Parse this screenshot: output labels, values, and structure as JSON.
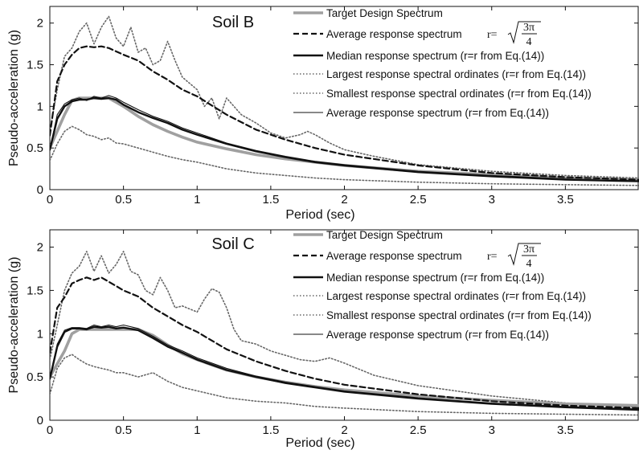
{
  "chart_data": [
    {
      "type": "line",
      "panel_label": "Soil B",
      "xlabel": "Period (sec)",
      "ylabel": "Pseudo-acceleration (g)",
      "xlim": [
        0,
        4
      ],
      "ylim": [
        0,
        2.2
      ],
      "x_ticks": [
        0,
        0.5,
        1,
        1.5,
        2,
        2.5,
        3,
        3.5
      ],
      "x_tick_labels": [
        "0",
        "0.5",
        "1",
        "1.5",
        "2",
        "2.5",
        "3",
        "3.5"
      ],
      "y_ticks": [
        0,
        0.5,
        1,
        1.5,
        2
      ],
      "y_tick_labels": [
        "0",
        "0.5",
        "1",
        "1.5",
        "2"
      ],
      "grid": false,
      "legend_position": "top-right",
      "series": [
        {
          "name": "Target Design Spectrum",
          "style": "target",
          "color": "#a0a0a0",
          "x": [
            0,
            0.1,
            0.15,
            0.2,
            0.3,
            0.4,
            0.5,
            0.6,
            0.7,
            0.8,
            0.9,
            1.0,
            1.2,
            1.4,
            1.6,
            1.8,
            2.0,
            2.5,
            3.0,
            3.5,
            4.0
          ],
          "y": [
            0.5,
            0.9,
            1.07,
            1.1,
            1.1,
            1.1,
            1.0,
            0.88,
            0.78,
            0.7,
            0.63,
            0.57,
            0.49,
            0.42,
            0.37,
            0.33,
            0.29,
            0.22,
            0.18,
            0.14,
            0.12
          ]
        },
        {
          "name": "Average response spectrum",
          "style": "dashed",
          "color": "#111111",
          "x": [
            0,
            0.05,
            0.1,
            0.15,
            0.2,
            0.25,
            0.3,
            0.35,
            0.4,
            0.45,
            0.5,
            0.6,
            0.7,
            0.8,
            0.9,
            1.0,
            1.2,
            1.4,
            1.6,
            1.8,
            2.0,
            2.5,
            3.0,
            3.5,
            4.0
          ],
          "y": [
            0.65,
            1.3,
            1.5,
            1.62,
            1.7,
            1.72,
            1.71,
            1.72,
            1.7,
            1.66,
            1.62,
            1.55,
            1.42,
            1.32,
            1.2,
            1.12,
            0.9,
            0.72,
            0.6,
            0.5,
            0.42,
            0.29,
            0.2,
            0.15,
            0.12
          ]
        },
        {
          "name": "Median response spectrum",
          "style": "thick",
          "color": "#111111",
          "x": [
            0,
            0.05,
            0.1,
            0.15,
            0.2,
            0.25,
            0.3,
            0.35,
            0.4,
            0.45,
            0.5,
            0.6,
            0.7,
            0.8,
            0.9,
            1.0,
            1.2,
            1.4,
            1.6,
            1.8,
            2.0,
            2.5,
            3.0,
            3.5,
            4.0
          ],
          "y": [
            0.48,
            0.85,
            1.0,
            1.06,
            1.08,
            1.08,
            1.1,
            1.09,
            1.1,
            1.08,
            1.02,
            0.93,
            0.86,
            0.8,
            0.72,
            0.66,
            0.55,
            0.46,
            0.39,
            0.33,
            0.29,
            0.21,
            0.16,
            0.12,
            0.1
          ]
        },
        {
          "name": "Largest response spectral ordinates",
          "style": "dotted",
          "color": "#666666",
          "x": [
            0,
            0.05,
            0.1,
            0.15,
            0.2,
            0.25,
            0.3,
            0.35,
            0.4,
            0.45,
            0.5,
            0.55,
            0.6,
            0.65,
            0.7,
            0.75,
            0.8,
            0.85,
            0.9,
            1.0,
            1.05,
            1.1,
            1.15,
            1.2,
            1.3,
            1.4,
            1.5,
            1.6,
            1.7,
            1.75,
            1.8,
            1.9,
            2.0,
            2.2,
            2.5,
            3.0,
            3.5,
            4.0
          ],
          "y": [
            0.7,
            1.2,
            1.6,
            1.7,
            1.9,
            2.0,
            1.75,
            1.95,
            2.08,
            1.82,
            1.72,
            1.95,
            1.65,
            1.7,
            1.5,
            1.55,
            1.78,
            1.55,
            1.35,
            1.2,
            1.0,
            1.1,
            0.85,
            1.1,
            0.9,
            0.8,
            0.68,
            0.62,
            0.66,
            0.7,
            0.66,
            0.56,
            0.48,
            0.4,
            0.3,
            0.22,
            0.17,
            0.14
          ]
        },
        {
          "name": "Smallest response spectral ordinates",
          "style": "dotted",
          "color": "#666666",
          "x": [
            0,
            0.05,
            0.1,
            0.15,
            0.2,
            0.25,
            0.3,
            0.35,
            0.4,
            0.45,
            0.5,
            0.6,
            0.7,
            0.8,
            0.9,
            1.0,
            1.2,
            1.4,
            1.6,
            1.8,
            2.0,
            2.5,
            3.0,
            3.5,
            4.0
          ],
          "y": [
            0.35,
            0.55,
            0.7,
            0.76,
            0.72,
            0.66,
            0.64,
            0.6,
            0.62,
            0.56,
            0.55,
            0.5,
            0.45,
            0.4,
            0.36,
            0.33,
            0.25,
            0.2,
            0.17,
            0.14,
            0.12,
            0.09,
            0.07,
            0.06,
            0.05
          ]
        },
        {
          "name": "Average response spectrum",
          "style": "thin",
          "color": "#222222",
          "x": [
            0,
            0.05,
            0.1,
            0.15,
            0.2,
            0.25,
            0.3,
            0.35,
            0.4,
            0.45,
            0.5,
            0.6,
            0.7,
            0.8,
            0.9,
            1.0,
            1.2,
            1.4,
            1.6,
            1.8,
            2.0,
            2.5,
            3.0,
            3.5,
            4.0
          ],
          "y": [
            0.48,
            0.9,
            1.03,
            1.08,
            1.1,
            1.07,
            1.12,
            1.1,
            1.13,
            1.1,
            1.05,
            0.96,
            0.88,
            0.82,
            0.74,
            0.68,
            0.56,
            0.47,
            0.4,
            0.34,
            0.3,
            0.22,
            0.17,
            0.13,
            0.1
          ]
        }
      ]
    },
    {
      "type": "line",
      "panel_label": "Soil C",
      "xlabel": "Period (sec)",
      "ylabel": "Pseudo-acceleration (g)",
      "xlim": [
        0,
        4
      ],
      "ylim": [
        0,
        2.2
      ],
      "x_ticks": [
        0,
        0.5,
        1,
        1.5,
        2,
        2.5,
        3,
        3.5
      ],
      "x_tick_labels": [
        "0",
        "0.5",
        "1",
        "1.5",
        "2",
        "2.5",
        "3",
        "3.5"
      ],
      "y_ticks": [
        0,
        0.5,
        1,
        1.5,
        2
      ],
      "y_tick_labels": [
        "0",
        "0.5",
        "1",
        "1.5",
        "2"
      ],
      "grid": false,
      "legend_position": "top-right",
      "series": [
        {
          "name": "Target Design Spectrum",
          "style": "target",
          "color": "#a0a0a0",
          "x": [
            0,
            0.1,
            0.15,
            0.2,
            0.3,
            0.4,
            0.5,
            0.6,
            0.7,
            0.8,
            0.9,
            1.0,
            1.2,
            1.4,
            1.6,
            1.8,
            2.0,
            2.5,
            3.0,
            3.5,
            4.0
          ],
          "y": [
            0.5,
            0.8,
            1.0,
            1.05,
            1.05,
            1.05,
            1.05,
            1.05,
            0.98,
            0.87,
            0.77,
            0.7,
            0.58,
            0.5,
            0.44,
            0.39,
            0.35,
            0.28,
            0.23,
            0.19,
            0.17
          ]
        },
        {
          "name": "Average response spectrum",
          "style": "dashed",
          "color": "#111111",
          "x": [
            0,
            0.05,
            0.1,
            0.15,
            0.2,
            0.25,
            0.3,
            0.35,
            0.4,
            0.45,
            0.5,
            0.6,
            0.7,
            0.8,
            0.9,
            1.0,
            1.2,
            1.4,
            1.6,
            1.8,
            2.0,
            2.5,
            3.0,
            3.5,
            4.0
          ],
          "y": [
            0.78,
            1.3,
            1.42,
            1.58,
            1.62,
            1.65,
            1.62,
            1.65,
            1.6,
            1.55,
            1.5,
            1.43,
            1.3,
            1.2,
            1.1,
            1.02,
            0.82,
            0.68,
            0.57,
            0.48,
            0.41,
            0.3,
            0.22,
            0.17,
            0.14
          ]
        },
        {
          "name": "Median response spectrum",
          "style": "thick",
          "color": "#111111",
          "x": [
            0,
            0.05,
            0.1,
            0.15,
            0.2,
            0.25,
            0.3,
            0.35,
            0.4,
            0.45,
            0.5,
            0.6,
            0.7,
            0.8,
            0.9,
            1.0,
            1.2,
            1.4,
            1.6,
            1.8,
            2.0,
            2.5,
            3.0,
            3.5,
            4.0
          ],
          "y": [
            0.48,
            0.85,
            1.02,
            1.06,
            1.06,
            1.05,
            1.08,
            1.07,
            1.08,
            1.06,
            1.07,
            1.04,
            0.95,
            0.85,
            0.78,
            0.7,
            0.58,
            0.5,
            0.43,
            0.38,
            0.33,
            0.25,
            0.19,
            0.15,
            0.12
          ]
        },
        {
          "name": "Largest response spectral ordinates",
          "style": "dotted",
          "color": "#666666",
          "x": [
            0,
            0.05,
            0.1,
            0.15,
            0.2,
            0.25,
            0.3,
            0.35,
            0.4,
            0.45,
            0.5,
            0.55,
            0.6,
            0.65,
            0.7,
            0.75,
            0.8,
            0.85,
            0.9,
            1.0,
            1.05,
            1.1,
            1.15,
            1.2,
            1.25,
            1.3,
            1.4,
            1.5,
            1.6,
            1.7,
            1.8,
            1.9,
            2.0,
            2.2,
            2.5,
            3.0,
            3.5,
            4.0
          ],
          "y": [
            0.7,
            1.1,
            1.5,
            1.7,
            1.78,
            1.95,
            1.72,
            1.9,
            1.7,
            1.8,
            1.95,
            1.72,
            1.68,
            1.5,
            1.45,
            1.65,
            1.5,
            1.3,
            1.32,
            1.25,
            1.4,
            1.52,
            1.48,
            1.3,
            1.05,
            0.92,
            0.88,
            0.8,
            0.75,
            0.7,
            0.68,
            0.72,
            0.66,
            0.52,
            0.4,
            0.28,
            0.2,
            0.15
          ]
        },
        {
          "name": "Smallest response spectral ordinates",
          "style": "dotted",
          "color": "#666666",
          "x": [
            0,
            0.05,
            0.1,
            0.15,
            0.2,
            0.25,
            0.3,
            0.35,
            0.4,
            0.45,
            0.5,
            0.6,
            0.7,
            0.8,
            0.9,
            1.0,
            1.2,
            1.4,
            1.6,
            1.8,
            2.0,
            2.5,
            3.0,
            3.5,
            4.0
          ],
          "y": [
            0.3,
            0.6,
            0.72,
            0.76,
            0.7,
            0.65,
            0.62,
            0.6,
            0.58,
            0.55,
            0.55,
            0.5,
            0.55,
            0.45,
            0.38,
            0.34,
            0.26,
            0.22,
            0.2,
            0.16,
            0.14,
            0.1,
            0.08,
            0.07,
            0.06
          ]
        },
        {
          "name": "Average response spectrum",
          "style": "thin",
          "color": "#222222",
          "x": [
            0,
            0.05,
            0.1,
            0.15,
            0.2,
            0.25,
            0.3,
            0.35,
            0.4,
            0.45,
            0.5,
            0.6,
            0.7,
            0.8,
            0.9,
            1.0,
            1.2,
            1.4,
            1.6,
            1.8,
            2.0,
            2.5,
            3.0,
            3.5,
            4.0
          ],
          "y": [
            0.48,
            0.88,
            1.04,
            1.07,
            1.07,
            1.06,
            1.1,
            1.08,
            1.1,
            1.08,
            1.1,
            1.06,
            0.97,
            0.87,
            0.8,
            0.72,
            0.6,
            0.51,
            0.44,
            0.39,
            0.34,
            0.26,
            0.2,
            0.16,
            0.13
          ]
        }
      ]
    }
  ],
  "legend": {
    "entries": [
      {
        "style": "target",
        "text": "Target Design Spectrum",
        "math": ""
      },
      {
        "style": "dashed",
        "text": "Average response spectrum",
        "math": "r="
      },
      {
        "style": "thick",
        "text": "Median response spectrum (r=r from Eq.(14))",
        "math": ""
      },
      {
        "style": "dotted",
        "text": "Largest response spectral ordinates (r=r from Eq.(14))",
        "math": ""
      },
      {
        "style": "dotted",
        "text": "Smallest response spectral ordinates (r=r from Eq.(14))",
        "math": ""
      },
      {
        "style": "thin",
        "text": "Average response spectrum (r=r from Eq.(14))",
        "math": ""
      }
    ],
    "fraction_numerator": "3π",
    "fraction_denominator": "4"
  },
  "colors": {
    "target": "#a0a0a0",
    "dark": "#111111",
    "dotted": "#666666",
    "axis": "#111111",
    "background": "#ffffff"
  }
}
